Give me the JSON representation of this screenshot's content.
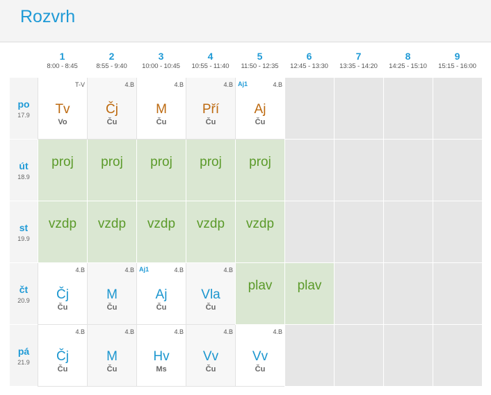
{
  "header": {
    "title": "Rozvrh"
  },
  "periods": [
    {
      "num": "1",
      "time": "8:00 - 8:45"
    },
    {
      "num": "2",
      "time": "8:55 - 9:40"
    },
    {
      "num": "3",
      "time": "10:00 - 10:45"
    },
    {
      "num": "4",
      "time": "10:55 - 11:40"
    },
    {
      "num": "5",
      "time": "11:50 - 12:35"
    },
    {
      "num": "6",
      "time": "12:45 - 13:30"
    },
    {
      "num": "7",
      "time": "13:35 - 14:20"
    },
    {
      "num": "8",
      "time": "14:25 - 15:10"
    },
    {
      "num": "9",
      "time": "15:15 - 16:00"
    }
  ],
  "days": [
    {
      "day": "po",
      "date": "17.9"
    },
    {
      "day": "út",
      "date": "18.9"
    },
    {
      "day": "st",
      "date": "19.9"
    },
    {
      "day": "čt",
      "date": "20.9"
    },
    {
      "day": "pá",
      "date": "21.9"
    }
  ],
  "schedule": {
    "po": [
      {
        "subject": "Tv",
        "teacher": "Vo",
        "room": "T-V"
      },
      {
        "subject": "Čj",
        "teacher": "Ču",
        "room": "4.B"
      },
      {
        "subject": "M",
        "teacher": "Ču",
        "room": "4.B"
      },
      {
        "subject": "Pří",
        "teacher": "Ču",
        "room": "4.B"
      },
      {
        "subject": "Aj",
        "teacher": "Ču",
        "room": "4.B",
        "group": "Aj1"
      }
    ],
    "ut": [
      {
        "event": "proj"
      },
      {
        "event": "proj"
      },
      {
        "event": "proj"
      },
      {
        "event": "proj"
      },
      {
        "event": "proj"
      }
    ],
    "st": [
      {
        "event": "vzdp"
      },
      {
        "event": "vzdp"
      },
      {
        "event": "vzdp"
      },
      {
        "event": "vzdp"
      },
      {
        "event": "vzdp"
      }
    ],
    "ct": [
      {
        "subject": "Čj",
        "teacher": "Ču",
        "room": "4.B"
      },
      {
        "subject": "M",
        "teacher": "Ču",
        "room": "4.B"
      },
      {
        "subject": "Aj",
        "teacher": "Ču",
        "room": "4.B",
        "group": "Aj1"
      },
      {
        "subject": "Vla",
        "teacher": "Ču",
        "room": "4.B"
      },
      {
        "event": "plav"
      },
      {
        "event": "plav"
      }
    ],
    "pa": [
      {
        "subject": "Čj",
        "teacher": "Ču",
        "room": "4.B"
      },
      {
        "subject": "M",
        "teacher": "Ču",
        "room": "4.B"
      },
      {
        "subject": "Hv",
        "teacher": "Ms",
        "room": "4.B"
      },
      {
        "subject": "Vv",
        "teacher": "Ču",
        "room": "4.B"
      },
      {
        "subject": "Vv",
        "teacher": "Ču",
        "room": "4.B"
      }
    ]
  },
  "colors": {
    "accent": "#1f9ad6",
    "changed_subject": "#bd6a10",
    "event_text": "#5b9a2a",
    "event_bg": "#dae7d2",
    "empty_bg": "#e6e6e6"
  }
}
